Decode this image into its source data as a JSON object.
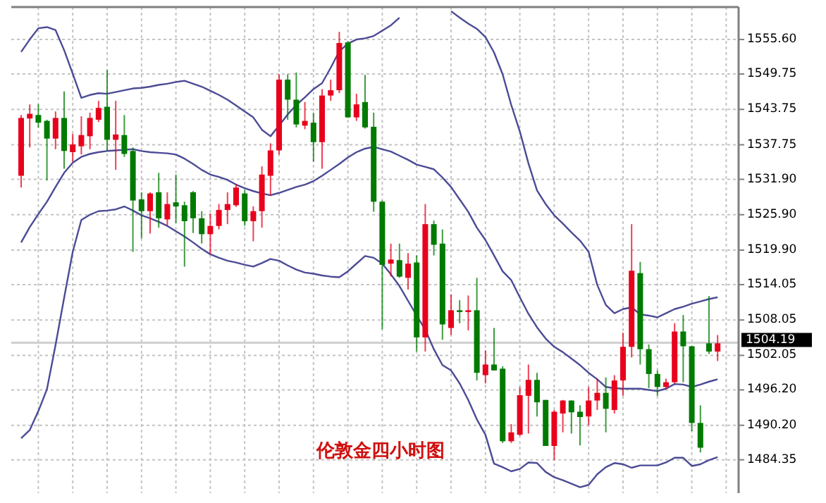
{
  "chart_data": {
    "type": "candlestick",
    "ylim": [
      1478.7,
      1561.1
    ],
    "tick_labels": "y",
    "grid": true,
    "yticks": [
      {
        "value": 1555.6,
        "label": "1555.60"
      },
      {
        "value": 1549.75,
        "label": "1549.75"
      },
      {
        "value": 1543.75,
        "label": "1543.75"
      },
      {
        "value": 1537.75,
        "label": "1537.75"
      },
      {
        "value": 1531.9,
        "label": "1531.90"
      },
      {
        "value": 1525.9,
        "label": "1525.90"
      },
      {
        "value": 1519.9,
        "label": "1519.90"
      },
      {
        "value": 1514.05,
        "label": "1514.05"
      },
      {
        "value": 1508.05,
        "label": "1508.05"
      },
      {
        "value": 1502.05,
        "label": "1502.05"
      },
      {
        "value": 1496.2,
        "label": "1496.20"
      },
      {
        "value": 1490.2,
        "label": "1490.20"
      },
      {
        "value": 1484.35,
        "label": "1484.35"
      }
    ],
    "ref_lines": [
      {
        "axis": "y",
        "value": 1504.19,
        "label": "1504.19",
        "color": "#d0d0d0"
      }
    ],
    "annotations": [
      "伦敦金四小时图"
    ],
    "categories": [
      null,
      null,
      null,
      null,
      null,
      null,
      null,
      null,
      null,
      null,
      null,
      null,
      null,
      null,
      null,
      null,
      null,
      null,
      null,
      null,
      null,
      null,
      null,
      null,
      null,
      null,
      null,
      null,
      null,
      null,
      null,
      null,
      null,
      null,
      null,
      null,
      null,
      null,
      null,
      null,
      null,
      null,
      null,
      null,
      null,
      null,
      null,
      null,
      null,
      null,
      null,
      null,
      null,
      null,
      null,
      null,
      null,
      null,
      null,
      null,
      null,
      null,
      null,
      null,
      null,
      null,
      null,
      null,
      null,
      null,
      null,
      null,
      null,
      null,
      null,
      null,
      null,
      null,
      null,
      null,
      null,
      null
    ],
    "ohlc": [
      [
        1532.5,
        1542.8,
        1530.5,
        1542.3
      ],
      [
        1542.2,
        1544.6,
        1537.3,
        1543.0
      ],
      [
        1542.8,
        1544.6,
        1540.7,
        1541.5
      ],
      [
        1541.8,
        1542.0,
        1531.7,
        1538.8
      ],
      [
        1538.8,
        1543.4,
        1537.0,
        1542.3
      ],
      [
        1542.3,
        1546.8,
        1533.7,
        1536.7
      ],
      [
        1536.5,
        1539.6,
        1534.9,
        1537.8
      ],
      [
        1537.5,
        1542.6,
        1536.1,
        1539.4
      ],
      [
        1539.2,
        1543.2,
        1537.0,
        1542.3
      ],
      [
        1542.0,
        1545.2,
        1541.6,
        1544.0
      ],
      [
        1544.2,
        1550.4,
        1536.8,
        1538.6
      ],
      [
        1538.6,
        1545.2,
        1533.5,
        1539.5
      ],
      [
        1539.4,
        1542.8,
        1535.7,
        1536.2
      ],
      [
        1536.7,
        1537.3,
        1519.6,
        1528.3
      ],
      [
        1528.5,
        1529.7,
        1521.9,
        1526.5
      ],
      [
        1526.5,
        1529.7,
        1522.7,
        1529.5
      ],
      [
        1529.7,
        1533.0,
        1523.7,
        1525.3
      ],
      [
        1525.1,
        1529.7,
        1524.1,
        1527.7
      ],
      [
        1528.0,
        1532.7,
        1524.5,
        1527.3
      ],
      [
        1527.5,
        1528.1,
        1517.1,
        1524.8
      ],
      [
        1529.7,
        1529.9,
        1522.8,
        1525.3
      ],
      [
        1525.3,
        1526.5,
        1521.0,
        1522.6
      ],
      [
        1522.6,
        1526.1,
        1519.2,
        1524.0
      ],
      [
        1524.0,
        1527.7,
        1523.4,
        1526.7
      ],
      [
        1526.7,
        1529.7,
        1524.3,
        1527.7
      ],
      [
        1527.5,
        1531.1,
        1527.2,
        1530.5
      ],
      [
        1529.5,
        1530.1,
        1524.0,
        1524.8
      ],
      [
        1524.8,
        1527.3,
        1521.4,
        1526.5
      ],
      [
        1526.5,
        1534.1,
        1523.7,
        1532.7
      ],
      [
        1532.5,
        1538.0,
        1529.1,
        1536.8
      ],
      [
        1536.8,
        1549.7,
        1536.1,
        1548.8
      ],
      [
        1548.8,
        1549.7,
        1542.0,
        1545.4
      ],
      [
        1545.4,
        1550.0,
        1540.7,
        1541.2
      ],
      [
        1541.0,
        1545.0,
        1540.4,
        1541.8
      ],
      [
        1541.5,
        1543.2,
        1534.9,
        1538.2
      ],
      [
        1538.2,
        1547.2,
        1533.7,
        1546.1
      ],
      [
        1546.1,
        1548.8,
        1545.2,
        1547.0
      ],
      [
        1547.0,
        1556.9,
        1546.5,
        1555.0
      ],
      [
        1555.1,
        1555.3,
        1542.3,
        1542.4
      ],
      [
        1542.4,
        1546.4,
        1541.8,
        1544.6
      ],
      [
        1545.0,
        1549.6,
        1540.5,
        1540.7
      ],
      [
        1540.8,
        1543.2,
        1526.4,
        1528.1
      ],
      [
        1528.1,
        1528.3,
        1506.5,
        1517.4
      ],
      [
        1517.6,
        1521.0,
        1515.4,
        1518.3
      ],
      [
        1518.2,
        1521.0,
        1515.2,
        1515.4
      ],
      [
        1515.2,
        1519.4,
        1513.2,
        1517.6
      ],
      [
        1517.8,
        1519.0,
        1502.7,
        1505.1
      ],
      [
        1505.1,
        1527.7,
        1502.7,
        1524.3
      ],
      [
        1524.3,
        1524.9,
        1519.0,
        1520.8
      ],
      [
        1521.0,
        1523.4,
        1504.7,
        1507.3
      ],
      [
        1506.7,
        1512.4,
        1505.5,
        1509.7
      ],
      [
        1509.7,
        1511.4,
        1507.5,
        1509.4
      ],
      [
        1509.4,
        1512.2,
        1506.3,
        1509.7
      ],
      [
        1509.7,
        1515.2,
        1497.8,
        1499.1
      ],
      [
        1498.7,
        1502.9,
        1497.3,
        1500.5
      ],
      [
        1500.5,
        1506.7,
        1499.5,
        1499.5
      ],
      [
        1499.8,
        1500.2,
        1487.2,
        1487.5
      ],
      [
        1487.5,
        1490.4,
        1487.2,
        1489.0
      ],
      [
        1488.6,
        1496.7,
        1488.4,
        1495.3
      ],
      [
        1495.2,
        1500.5,
        1488.8,
        1497.9
      ],
      [
        1497.9,
        1499.1,
        1491.7,
        1494.1
      ],
      [
        1494.5,
        1494.5,
        1486.7,
        1486.7
      ],
      [
        1486.7,
        1492.8,
        1484.3,
        1492.5
      ],
      [
        1492.2,
        1494.5,
        1489.0,
        1494.4
      ],
      [
        1494.4,
        1494.4,
        1488.8,
        1492.4
      ],
      [
        1492.5,
        1493.6,
        1486.8,
        1491.6
      ],
      [
        1491.7,
        1496.7,
        1490.2,
        1494.4
      ],
      [
        1494.4,
        1498.1,
        1492.8,
        1495.7
      ],
      [
        1495.7,
        1498.3,
        1489.0,
        1493.0
      ],
      [
        1492.8,
        1498.7,
        1492.2,
        1497.8
      ],
      [
        1497.8,
        1505.9,
        1495.2,
        1503.5
      ],
      [
        1503.5,
        1524.3,
        1501.7,
        1516.4
      ],
      [
        1516.0,
        1517.9,
        1500.5,
        1503.1
      ],
      [
        1503.1,
        1503.9,
        1496.5,
        1498.9
      ],
      [
        1498.9,
        1499.5,
        1495.2,
        1496.7
      ],
      [
        1496.7,
        1498.1,
        1496.3,
        1497.5
      ],
      [
        1497.5,
        1507.5,
        1497.3,
        1506.1
      ],
      [
        1506.1,
        1508.9,
        1497.5,
        1503.6
      ],
      [
        1503.6,
        1503.6,
        1489.2,
        1490.6
      ],
      [
        1490.6,
        1493.6,
        1485.6,
        1486.4
      ],
      [
        1504.1,
        1512.1,
        1502.3,
        1502.7
      ],
      [
        1502.7,
        1505.5,
        1501.1,
        1504.1
      ]
    ],
    "colors": [
      "#e8001c",
      "#e8001c",
      "#007a00",
      "#007a00",
      "#e8001c",
      "#007a00",
      "#e8001c",
      "#e8001c",
      "#e8001c",
      "#e8001c",
      "#007a00",
      "#e8001c",
      "#007a00",
      "#007a00",
      "#007a00",
      "#e8001c",
      "#007a00",
      "#e8001c",
      "#007a00",
      "#007a00",
      "#007a00",
      "#007a00",
      "#e8001c",
      "#e8001c",
      "#e8001c",
      "#e8001c",
      "#007a00",
      "#e8001c",
      "#e8001c",
      "#e8001c",
      "#e8001c",
      "#007a00",
      "#007a00",
      "#e8001c",
      "#007a00",
      "#e8001c",
      "#e8001c",
      "#e8001c",
      "#007a00",
      "#e8001c",
      "#007a00",
      "#007a00",
      "#007a00",
      "#e8001c",
      "#007a00",
      "#e8001c",
      "#007a00",
      "#e8001c",
      "#007a00",
      "#007a00",
      "#e8001c",
      "#007a00",
      "#e8001c",
      "#007a00",
      "#e8001c",
      "#007a00",
      "#007a00",
      "#e8001c",
      "#e8001c",
      "#e8001c",
      "#007a00",
      "#007a00",
      "#e8001c",
      "#e8001c",
      "#007a00",
      "#007a00",
      "#e8001c",
      "#e8001c",
      "#007a00",
      "#e8001c",
      "#e8001c",
      "#e8001c",
      "#007a00",
      "#007a00",
      "#007a00",
      "#e8001c",
      "#e8001c",
      "#007a00",
      "#007a00",
      "#007a00",
      "#007a00",
      "#e8001c"
    ],
    "series": [
      {
        "type": "line",
        "color": "#4b4b96",
        "values": [
          1553.5,
          1555.6,
          1557.5,
          1557.7,
          1557.2,
          1553.8,
          1549.8,
          1545.7,
          1546.2,
          1546.5,
          1546.4,
          1546.7,
          1547.0,
          1547.3,
          1547.4,
          1547.6,
          1547.9,
          1548.1,
          1548.4,
          1548.6,
          1548.1,
          1547.6,
          1546.9,
          1546.2,
          1545.4,
          1544.4,
          1543.4,
          1542.4,
          1540.3,
          1539.2,
          1541.0,
          1542.9,
          1544.5,
          1545.8,
          1547.2,
          1548.2,
          1550.8,
          1553.6,
          1554.9,
          1555.6,
          1555.8,
          1556.2,
          1557.1,
          1558.0,
          1559.3,
          null,
          null,
          null,
          null,
          null,
          1560.4,
          1559.3,
          1558.3,
          1557.4,
          1556.0,
          1553.4,
          1549.7,
          1544.5,
          1540.0,
          1534.6,
          1530.0,
          1527.7,
          1525.8,
          1524.4,
          1522.9,
          1521.5,
          1519.6,
          1514.0,
          1510.6,
          1509.2,
          1509.9,
          1510.2,
          1509.0,
          1508.8,
          1508.5,
          1509.2,
          1509.9,
          1510.3,
          1510.8,
          1511.2,
          1511.6,
          1511.9
        ]
      },
      {
        "type": "line",
        "color": "#4b4b96",
        "values": [
          1521.2,
          1523.8,
          1526.0,
          1528.1,
          1530.6,
          1533.0,
          1534.7,
          1535.7,
          1536.2,
          1536.5,
          1536.7,
          1536.8,
          1536.9,
          1537.0,
          1536.7,
          1536.5,
          1536.4,
          1536.3,
          1536.1,
          1535.4,
          1534.5,
          1533.5,
          1532.7,
          1532.3,
          1531.8,
          1531.0,
          1530.4,
          1529.9,
          1529.5,
          1529.2,
          1529.6,
          1530.1,
          1530.6,
          1531.0,
          1531.6,
          1532.5,
          1533.5,
          1534.5,
          1535.6,
          1536.5,
          1537.1,
          1537.4,
          1537.0,
          1536.6,
          1535.9,
          1535.2,
          1534.4,
          1534.0,
          1533.6,
          1532.2,
          1530.6,
          1528.5,
          1526.4,
          1523.7,
          1521.6,
          1519.0,
          1516.3,
          1514.8,
          1511.9,
          1509.1,
          1506.8,
          1504.9,
          1503.5,
          1502.6,
          1501.5,
          1500.4,
          1499.1,
          1498.0,
          1496.7,
          1496.5,
          1496.4,
          1496.4,
          1496.4,
          1496.2,
          1496.0,
          1496.4,
          1497.2,
          1497.1,
          1496.7,
          1497.1,
          1497.6,
          1498.0
        ]
      },
      {
        "type": "line",
        "color": "#4b4b96",
        "values": [
          1488.0,
          1489.4,
          1492.6,
          1496.3,
          1503.8,
          1511.8,
          1519.6,
          1525.0,
          1525.9,
          1526.5,
          1526.6,
          1526.8,
          1527.3,
          1526.6,
          1525.8,
          1525.3,
          1524.7,
          1524.0,
          1523.1,
          1522.2,
          1521.2,
          1520.1,
          1519.2,
          1518.6,
          1518.1,
          1517.8,
          1517.4,
          1517.1,
          1517.7,
          1518.4,
          1518.1,
          1517.3,
          1516.6,
          1516.1,
          1515.9,
          1515.6,
          1515.4,
          1515.3,
          1516.3,
          1517.6,
          1518.9,
          1518.6,
          1517.6,
          1515.8,
          1513.8,
          1511.3,
          1508.8,
          1506.4,
          1503.1,
          1500.4,
          1499.5,
          1497.3,
          1494.5,
          1491.2,
          1488.6,
          1483.7,
          1483.1,
          1482.4,
          1482.8,
          1483.9,
          1483.8,
          1482.3,
          1481.4,
          1480.9,
          1480.3,
          1479.7,
          1480.1,
          1481.9,
          1483.1,
          1483.8,
          1483.6,
          1483.0,
          1483.4,
          1483.4,
          1483.4,
          1483.9,
          1484.7,
          1484.7,
          1483.3,
          1483.6,
          1484.3,
          1484.8
        ]
      }
    ]
  }
}
